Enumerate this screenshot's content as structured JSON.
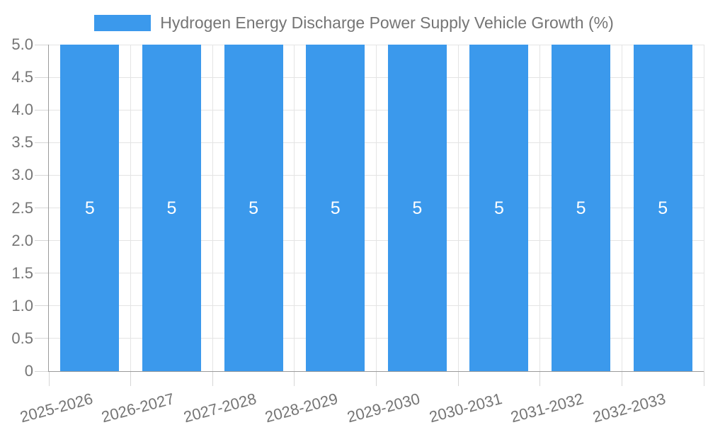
{
  "chart_data": {
    "type": "bar",
    "title": "Hydrogen Energy Discharge Power Supply Vehicle Growth (%)",
    "categories": [
      "2025-2026",
      "2026-2027",
      "2027-2028",
      "2028-2029",
      "2029-2030",
      "2030-2031",
      "2031-2032",
      "2032-2033"
    ],
    "values": [
      5,
      5,
      5,
      5,
      5,
      5,
      5,
      5
    ],
    "bar_value_labels": [
      "5",
      "5",
      "5",
      "5",
      "5",
      "5",
      "5",
      "5"
    ],
    "ylim": [
      0,
      5
    ],
    "ytick_labels": [
      "0",
      "0.5",
      "1.0",
      "1.5",
      "2.0",
      "2.5",
      "3.0",
      "3.5",
      "4.0",
      "4.5",
      "5.0"
    ],
    "xlabel": "",
    "ylabel": "",
    "grid": true,
    "legend": {
      "position": "top-center",
      "entries": [
        "Hydrogen Energy Discharge Power Supply Vehicle Growth (%)"
      ]
    },
    "colors": {
      "bar": "#3B99EC",
      "grid_line": "#E4E4E4",
      "tick_line": "#D6D6D6",
      "axis_line": "#9B9B9B",
      "axis_label": "#757575",
      "legend_text": "#757575",
      "bar_label": "#FFFFFF",
      "background": "#FFFFFF"
    }
  }
}
